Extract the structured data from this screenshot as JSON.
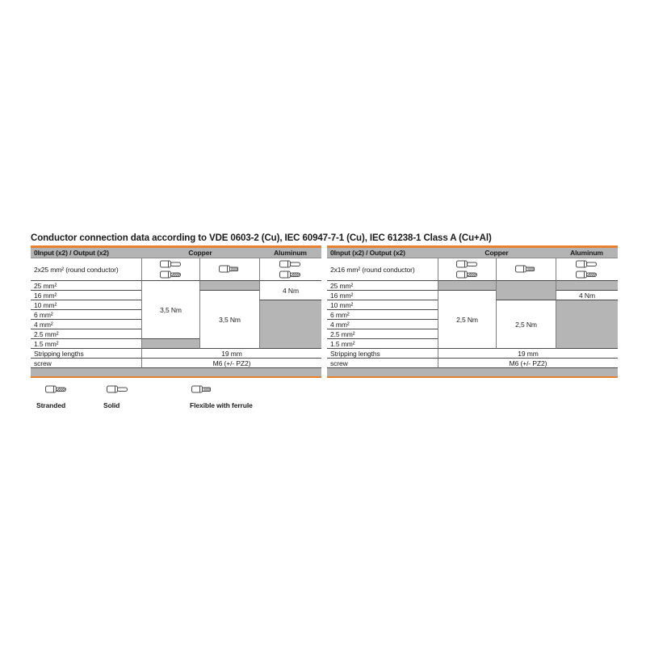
{
  "page": {
    "title": "Conductor connection data according to VDE 0603-2 (Cu), IEC 60947-7-1 (Cu), IEC 61238-1 Class A (Cu+Al)"
  },
  "colors": {
    "accent_orange": "#E8802E",
    "header_gray": "#b3b3b3",
    "blocked_cell_gray": "#b5b5b5"
  },
  "tables": [
    {
      "header": {
        "col1": "0Input (x2) / Output (x2)",
        "copper": "Copper",
        "aluminum": "Aluminum"
      },
      "conductor": {
        "label": "2x25 mm² (round conductor)",
        "copper_a_icons": [
          "wire-solid",
          "wire-stranded"
        ],
        "copper_b_icons": [
          "wire-ferrule"
        ],
        "aluminum_icons": [
          "wire-solid",
          "wire-stranded"
        ]
      },
      "sizes": [
        "25 mm²",
        "16 mm²",
        "10 mm²",
        "6 mm²",
        "4 mm²",
        "2.5 mm²",
        "1.5 mm²"
      ],
      "torques": {
        "copper_a": "3,5 Nm",
        "copper_b": "3,5 Nm",
        "aluminum": "4 Nm"
      },
      "stripping_label": "Stripping lengths",
      "stripping_value": "19 mm",
      "screw_label": "screw",
      "screw_value": "M6 (+/- PZ2)"
    },
    {
      "header": {
        "col1": "0Input (x2) / Output (x2)",
        "copper": "Copper",
        "aluminum": "Aluminum"
      },
      "conductor": {
        "label": "2x16 mm² (round conductor)",
        "copper_a_icons": [
          "wire-solid",
          "wire-stranded"
        ],
        "copper_b_icons": [
          "wire-ferrule"
        ],
        "aluminum_icons": [
          "wire-solid",
          "wire-stranded"
        ]
      },
      "sizes": [
        "25 mm²",
        "16 mm²",
        "10 mm²",
        "6 mm²",
        "4 mm²",
        "2.5 mm²",
        "1.5 mm²"
      ],
      "torques": {
        "copper_a": "2,5 Nm",
        "copper_b": "2,5 Nm",
        "aluminum": "4 Nm"
      },
      "stripping_label": "Stripping lengths",
      "stripping_value": "19 mm",
      "screw_label": "screw",
      "screw_value": "M6 (+/- PZ2)"
    }
  ],
  "legend": {
    "items": [
      {
        "icon": "wire-stranded",
        "label": "Stranded"
      },
      {
        "icon": "wire-solid",
        "label": "Solid"
      },
      {
        "icon": "wire-ferrule",
        "label": "Flexible with ferrule"
      }
    ]
  }
}
